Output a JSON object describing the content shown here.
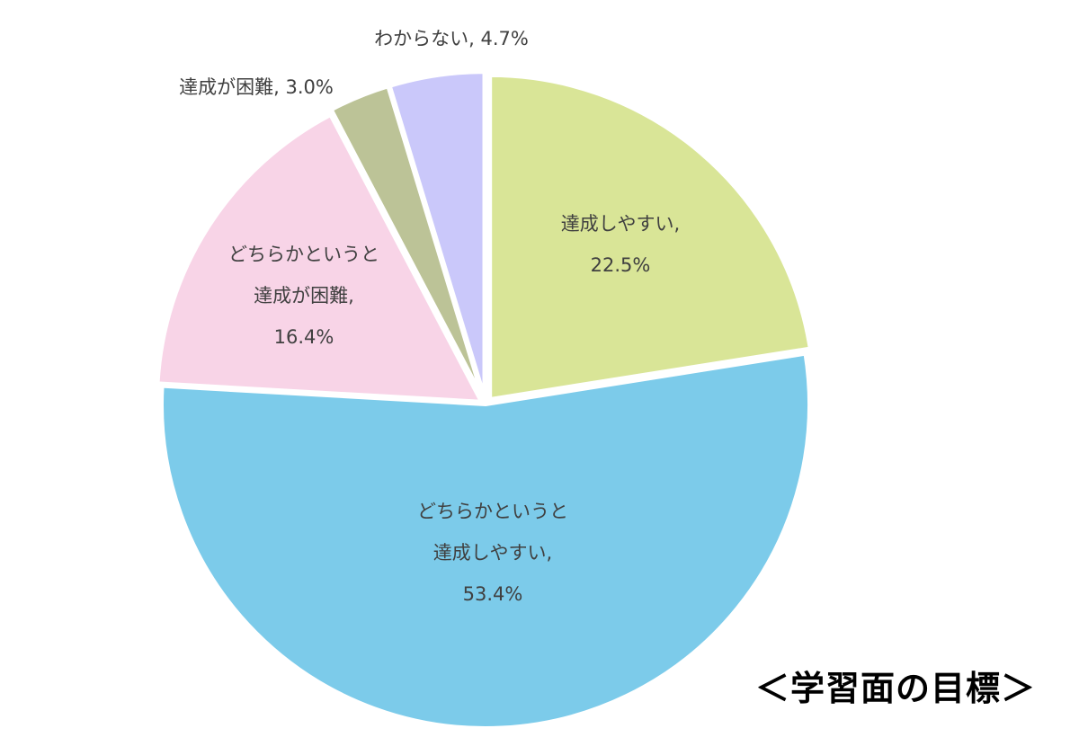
{
  "chart_data": {
    "type": "pie",
    "title": "＜学習面の目標＞",
    "start_angle_deg": 0,
    "direction": "clockwise",
    "slices": [
      {
        "label": "達成しやすい,",
        "value": 22.5,
        "percent_label": "22.5%",
        "color": "#d9e597"
      },
      {
        "label": "どちらかというと達成しやすい,",
        "value": 53.4,
        "percent_label": "53.4%",
        "color": "#7ccbea"
      },
      {
        "label": "どちらかというと達成が困難,",
        "value": 16.4,
        "percent_label": "16.4%",
        "color": "#f8d4e7"
      },
      {
        "label": "達成が困難,",
        "value": 3.0,
        "percent_label": "3.0%",
        "color": "#bcc397"
      },
      {
        "label": "わからない,",
        "value": 4.7,
        "percent_label": "4.7%",
        "color": "#cac8fa"
      }
    ],
    "slice_text_lines": [
      [
        "達成しやすい,",
        "22.5%"
      ],
      [
        "どちらかというと",
        "達成しやすい,",
        "53.4%"
      ],
      [
        "どちらかというと",
        "達成が困難,",
        "16.4%"
      ],
      [
        "達成が困難, 3.0%"
      ],
      [
        "わからない, 4.7%"
      ]
    ],
    "legend": "none",
    "stroke_color": "#ffffff"
  }
}
